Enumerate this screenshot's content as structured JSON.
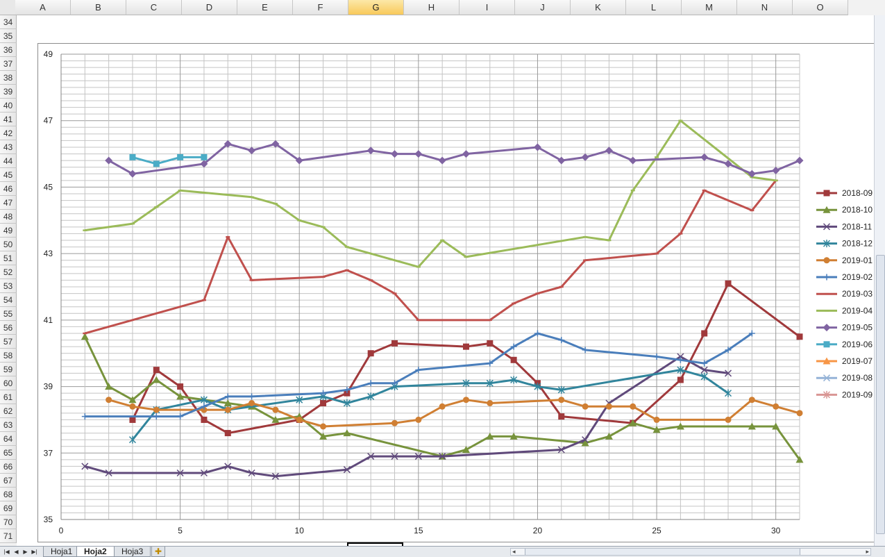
{
  "spreadsheet": {
    "columns": [
      "A",
      "B",
      "C",
      "D",
      "E",
      "F",
      "G",
      "H",
      "I",
      "J",
      "K",
      "L",
      "M",
      "N",
      "O"
    ],
    "selected_column": "G",
    "rows": [
      "34",
      "35",
      "36",
      "37",
      "38",
      "39",
      "40",
      "41",
      "42",
      "43",
      "44",
      "45",
      "46",
      "47",
      "48",
      "49",
      "50",
      "51",
      "52",
      "53",
      "54",
      "55",
      "56",
      "57",
      "58",
      "59",
      "60",
      "61",
      "62",
      "63",
      "64",
      "65",
      "66",
      "67",
      "68",
      "69",
      "70",
      "71"
    ],
    "sheet_tabs": [
      "Hoja1",
      "Hoja2",
      "Hoja3"
    ],
    "active_tab": "Hoja2"
  },
  "colors": {
    "2018-09": "#A0393B",
    "2018-10": "#77933C",
    "2018-11": "#604A7B",
    "2018-12": "#31859C",
    "2019-01": "#D07F33",
    "2019-02": "#4A7EBB",
    "2019-03": "#C0504D",
    "2019-04": "#9BBB59",
    "2019-05": "#8064A2",
    "2019-06": "#4BACC6",
    "2019-07": "#F79646",
    "2019-08": "#95B3D7",
    "2019-09": "#D99694"
  },
  "chart_data": {
    "type": "line",
    "title": "",
    "xlabel": "",
    "ylabel": "",
    "xlim": [
      0,
      31
    ],
    "ylim": [
      35,
      49
    ],
    "x_ticks": [
      "0",
      "5",
      "10",
      "15",
      "20",
      "25",
      "30"
    ],
    "y_ticks": [
      "35",
      "37",
      "39",
      "41",
      "43",
      "45",
      "47",
      "49"
    ],
    "grid": true,
    "legend_position": "right",
    "series": [
      {
        "name": "2018-09",
        "marker": "square",
        "points": [
          [
            3,
            38.0
          ],
          [
            4,
            39.5
          ],
          [
            5,
            39.0
          ],
          [
            6,
            38.0
          ],
          [
            7,
            37.6
          ],
          [
            10,
            38.0
          ],
          [
            11,
            38.5
          ],
          [
            12,
            38.8
          ],
          [
            13,
            40.0
          ],
          [
            14,
            40.3
          ],
          [
            17,
            40.2
          ],
          [
            18,
            40.3
          ],
          [
            19,
            39.8
          ],
          [
            20,
            39.1
          ],
          [
            21,
            38.1
          ],
          [
            24,
            37.9
          ],
          [
            26,
            39.2
          ],
          [
            27,
            40.6
          ],
          [
            28,
            42.1
          ],
          [
            31,
            40.5
          ]
        ]
      },
      {
        "name": "2018-10",
        "marker": "triangle",
        "points": [
          [
            1,
            40.5
          ],
          [
            2,
            39.0
          ],
          [
            3,
            38.6
          ],
          [
            4,
            39.2
          ],
          [
            5,
            38.7
          ],
          [
            7,
            38.5
          ],
          [
            8,
            38.4
          ],
          [
            9,
            38.0
          ],
          [
            10,
            38.1
          ],
          [
            11,
            37.5
          ],
          [
            12,
            37.6
          ],
          [
            16,
            36.9
          ],
          [
            17,
            37.1
          ],
          [
            18,
            37.5
          ],
          [
            19,
            37.5
          ],
          [
            22,
            37.3
          ],
          [
            23,
            37.5
          ],
          [
            24,
            37.9
          ],
          [
            25,
            37.7
          ],
          [
            26,
            37.8
          ],
          [
            29,
            37.8
          ],
          [
            30,
            37.8
          ],
          [
            31,
            36.8
          ]
        ]
      },
      {
        "name": "2018-11",
        "marker": "x",
        "points": [
          [
            1,
            36.6
          ],
          [
            2,
            36.4
          ],
          [
            5,
            36.4
          ],
          [
            6,
            36.4
          ],
          [
            7,
            36.6
          ],
          [
            8,
            36.4
          ],
          [
            9,
            36.3
          ],
          [
            12,
            36.5
          ],
          [
            13,
            36.9
          ],
          [
            14,
            36.9
          ],
          [
            15,
            36.9
          ],
          [
            16,
            36.9
          ],
          [
            21,
            37.1
          ],
          [
            22,
            37.4
          ],
          [
            23,
            38.5
          ],
          [
            26,
            39.9
          ],
          [
            27,
            39.5
          ],
          [
            28,
            39.4
          ]
        ]
      },
      {
        "name": "2018-12",
        "marker": "star",
        "points": [
          [
            3,
            37.4
          ],
          [
            4,
            38.3
          ],
          [
            6,
            38.6
          ],
          [
            7,
            38.3
          ],
          [
            10,
            38.6
          ],
          [
            11,
            38.7
          ],
          [
            12,
            38.5
          ],
          [
            13,
            38.7
          ],
          [
            14,
            39.0
          ],
          [
            17,
            39.1
          ],
          [
            18,
            39.1
          ],
          [
            19,
            39.2
          ],
          [
            20,
            39.0
          ],
          [
            21,
            38.9
          ],
          [
            26,
            39.5
          ],
          [
            27,
            39.3
          ],
          [
            28,
            38.8
          ]
        ]
      },
      {
        "name": "2019-01",
        "marker": "circle",
        "points": [
          [
            2,
            38.6
          ],
          [
            3,
            38.4
          ],
          [
            4,
            38.3
          ],
          [
            6,
            38.3
          ],
          [
            7,
            38.3
          ],
          [
            8,
            38.5
          ],
          [
            9,
            38.3
          ],
          [
            10,
            38.0
          ],
          [
            11,
            37.8
          ],
          [
            14,
            37.9
          ],
          [
            15,
            38.0
          ],
          [
            16,
            38.4
          ],
          [
            17,
            38.6
          ],
          [
            18,
            38.5
          ],
          [
            21,
            38.6
          ],
          [
            22,
            38.4
          ],
          [
            23,
            38.4
          ],
          [
            24,
            38.4
          ],
          [
            25,
            38.0
          ],
          [
            28,
            38.0
          ],
          [
            29,
            38.6
          ],
          [
            30,
            38.4
          ],
          [
            31,
            38.2
          ]
        ]
      },
      {
        "name": "2019-02",
        "marker": "plus",
        "points": [
          [
            1,
            38.1
          ],
          [
            4,
            38.1
          ],
          [
            5,
            38.1
          ],
          [
            6,
            38.4
          ],
          [
            7,
            38.7
          ],
          [
            8,
            38.7
          ],
          [
            11,
            38.8
          ],
          [
            12,
            38.9
          ],
          [
            13,
            39.1
          ],
          [
            14,
            39.1
          ],
          [
            15,
            39.5
          ],
          [
            18,
            39.7
          ],
          [
            19,
            40.2
          ],
          [
            20,
            40.6
          ],
          [
            21,
            40.4
          ],
          [
            22,
            40.1
          ],
          [
            25,
            39.9
          ],
          [
            26,
            39.8
          ],
          [
            27,
            39.7
          ],
          [
            28,
            40.1
          ],
          [
            29,
            40.6
          ]
        ]
      },
      {
        "name": "2019-03",
        "marker": "dash",
        "points": [
          [
            1,
            40.6
          ],
          [
            6,
            41.6
          ],
          [
            7,
            43.5
          ],
          [
            8,
            42.2
          ],
          [
            11,
            42.3
          ],
          [
            12,
            42.5
          ],
          [
            13,
            42.2
          ],
          [
            14,
            41.8
          ],
          [
            15,
            41.0
          ],
          [
            18,
            41.0
          ],
          [
            19,
            41.5
          ],
          [
            20,
            41.8
          ],
          [
            21,
            42.0
          ],
          [
            22,
            42.8
          ],
          [
            25,
            43.0
          ],
          [
            26,
            43.6
          ],
          [
            27,
            44.9
          ],
          [
            29,
            44.3
          ],
          [
            30,
            45.2
          ]
        ]
      },
      {
        "name": "2019-04",
        "marker": "dash",
        "points": [
          [
            1,
            43.7
          ],
          [
            3,
            43.9
          ],
          [
            4,
            44.4
          ],
          [
            5,
            44.9
          ],
          [
            8,
            44.7
          ],
          [
            9,
            44.5
          ],
          [
            10,
            44.0
          ],
          [
            11,
            43.8
          ],
          [
            12,
            43.2
          ],
          [
            15,
            42.6
          ],
          [
            16,
            43.4
          ],
          [
            17,
            42.9
          ],
          [
            22,
            43.5
          ],
          [
            23,
            43.4
          ],
          [
            24,
            44.9
          ],
          [
            25,
            45.9
          ],
          [
            26,
            47.0
          ],
          [
            29,
            45.3
          ],
          [
            30,
            45.2
          ]
        ]
      },
      {
        "name": "2019-05",
        "marker": "diamond",
        "points": [
          [
            2,
            45.8
          ],
          [
            3,
            45.4
          ],
          [
            6,
            45.7
          ],
          [
            7,
            46.3
          ],
          [
            8,
            46.1
          ],
          [
            9,
            46.3
          ],
          [
            10,
            45.8
          ],
          [
            13,
            46.1
          ],
          [
            14,
            46.0
          ],
          [
            15,
            46.0
          ],
          [
            16,
            45.8
          ],
          [
            17,
            46.0
          ],
          [
            20,
            46.2
          ],
          [
            21,
            45.8
          ],
          [
            22,
            45.9
          ],
          [
            23,
            46.1
          ],
          [
            24,
            45.8
          ],
          [
            27,
            45.9
          ],
          [
            28,
            45.7
          ],
          [
            29,
            45.4
          ],
          [
            30,
            45.5
          ],
          [
            31,
            45.8
          ]
        ]
      },
      {
        "name": "2019-06",
        "marker": "square",
        "points": [
          [
            3,
            45.9
          ],
          [
            4,
            45.7
          ],
          [
            5,
            45.9
          ],
          [
            6,
            45.9
          ]
        ]
      },
      {
        "name": "2019-07",
        "marker": "triangle",
        "points": []
      },
      {
        "name": "2019-08",
        "marker": "x",
        "points": []
      },
      {
        "name": "2019-09",
        "marker": "star",
        "points": []
      }
    ]
  }
}
